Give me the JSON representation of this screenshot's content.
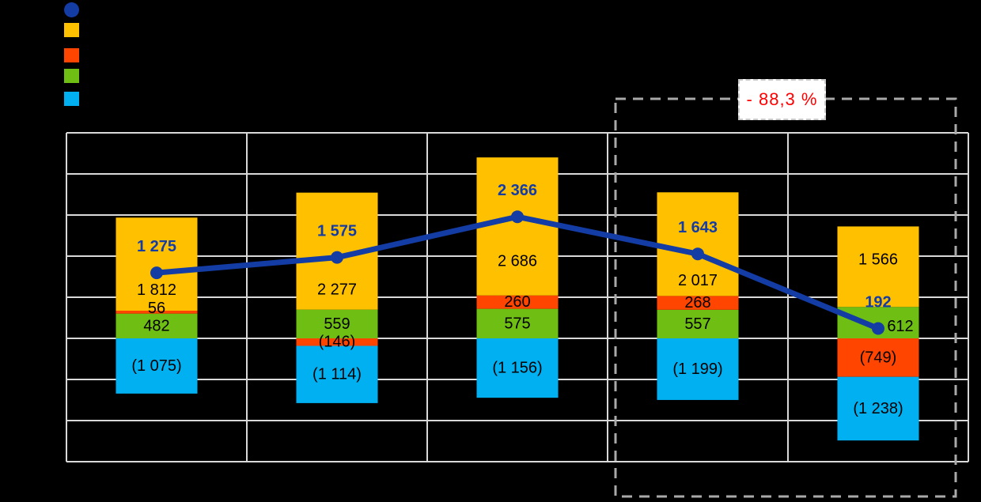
{
  "annotation": {
    "change_label": "- 88,3 %",
    "text_color": "#FF0000"
  },
  "legend": {
    "items": [
      {
        "name": "line-series",
        "shape": "circle",
        "color": "#143CA5",
        "label": ""
      },
      {
        "name": "gold-series",
        "shape": "square",
        "color": "#FFC000",
        "label": ""
      },
      {
        "name": "red-series",
        "shape": "square",
        "color": "#FF4500",
        "label": ""
      },
      {
        "name": "green-series",
        "shape": "square",
        "color": "#6EBE14",
        "label": ""
      },
      {
        "name": "blue-series",
        "shape": "square",
        "color": "#00B0F0",
        "label": ""
      }
    ]
  },
  "chart_data": {
    "type": "bar",
    "subtype": "stacked-bars-with-line-overlay",
    "title": "",
    "xlabel": "",
    "ylabel": "",
    "categories": [
      "",
      "",
      "",
      "",
      ""
    ],
    "bar_series": [
      {
        "name": "green-segment",
        "color": "#6EBE14",
        "values": [
          482,
          559,
          575,
          557,
          612
        ],
        "labels": [
          "482",
          "559",
          "575",
          "557",
          "612"
        ]
      },
      {
        "name": "red-segment",
        "color": "#FF4500",
        "values": [
          56,
          -146,
          260,
          268,
          -749
        ],
        "labels": [
          "56",
          "(146)",
          "260",
          "268",
          "(749)"
        ]
      },
      {
        "name": "gold-segment",
        "color": "#FFC000",
        "values": [
          1812,
          2277,
          2686,
          2017,
          1566
        ],
        "labels": [
          "1 812",
          "2 277",
          "2 686",
          "2 017",
          "1 566"
        ]
      },
      {
        "name": "blue-segment",
        "color": "#00B0F0",
        "values": [
          -1075,
          -1114,
          -1156,
          -1199,
          -1238
        ],
        "labels": [
          "(1 075)",
          "(1 114)",
          "(1 156)",
          "(1 199)",
          "(1 238)"
        ]
      }
    ],
    "line_series": {
      "name": "line-overlay",
      "color": "#143CA5",
      "values": [
        1275,
        1575,
        2366,
        1643,
        192
      ],
      "labels": [
        "1 275",
        "1 575",
        "2 366",
        "1 643",
        "192"
      ]
    },
    "axis": {
      "y_min": -2400,
      "y_max": 4000,
      "gridline_step": 800,
      "grid": true,
      "tick_labels_visible": false,
      "legend_position": "top-left"
    },
    "annotation_box": {
      "label": "- 88,3 %",
      "covers_last_n_categories": 2,
      "border_style": "dashed",
      "border_color": "#A9A9A9"
    },
    "label_colors": {
      "bar_labels": "#000000",
      "line_labels": "#143CA5"
    }
  },
  "colors": {
    "background": "#000000",
    "grid": "#D9D9D9",
    "plot_border": "#DDDDDD"
  }
}
